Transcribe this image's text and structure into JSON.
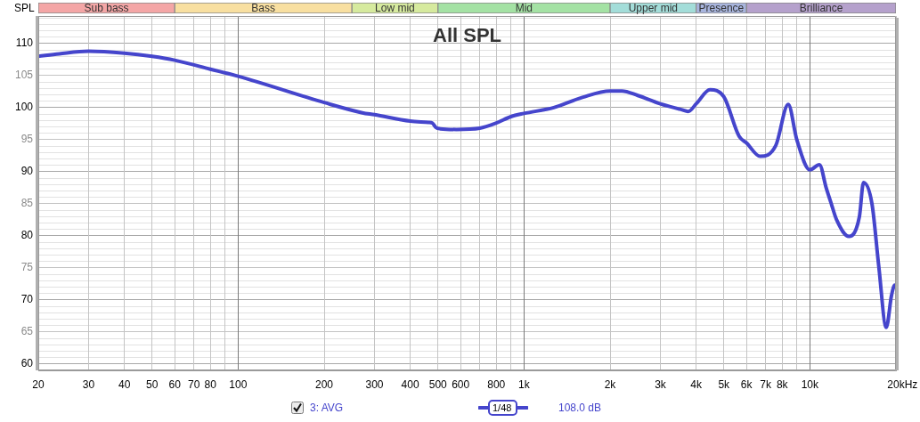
{
  "chart_data": [
    {
      "type": "bar",
      "orientation": "horizontal",
      "stacked": true,
      "categories": [
        null
      ],
      "series": [
        {
          "name": "Sub bass",
          "color": "#f4a6a6",
          "values": [
            60
          ]
        },
        {
          "name": "Bass",
          "color": "#f8dfa0",
          "values": [
            190
          ]
        },
        {
          "name": "Low mid",
          "color": "#d6ea9e",
          "values": [
            250
          ]
        },
        {
          "name": "Mid",
          "color": "#a4e2a4",
          "values": [
            1500
          ]
        },
        {
          "name": "Upper mid",
          "color": "#a3ddd9",
          "values": [
            2000
          ]
        },
        {
          "name": "Presence",
          "color": "#a8b5de",
          "values": [
            2000
          ]
        },
        {
          "name": "Brilliance",
          "color": "#b5a1cc",
          "values": [
            14000
          ]
        }
      ],
      "xlim": [
        20,
        20000
      ],
      "log": "x",
      "tick_labels": false
    },
    {
      "type": "line",
      "title": "All SPL",
      "ylabel": "SPL",
      "xlabel": "Hz",
      "x": [
        20,
        23.7,
        30,
        40,
        50,
        60,
        80,
        100,
        200,
        272,
        300,
        400,
        464,
        478,
        492,
        510,
        580,
        700,
        800,
        900,
        1000,
        1270,
        1600,
        2000,
        2200,
        2500,
        3000,
        3550,
        3750,
        4020,
        4470,
        5000,
        5660,
        6000,
        6700,
        7600,
        8400,
        9000,
        10000,
        10800,
        11400,
        11900,
        12400,
        13700,
        14900,
        15400,
        16500,
        17400,
        18500,
        19300,
        19800,
        20000
      ],
      "series": [
        {
          "name": "3: AVG",
          "color": "#4545cc",
          "values": [
            108.0,
            108.4,
            108.8,
            108.5,
            108.0,
            107.4,
            106.0,
            104.9,
            100.8,
            99.2,
            98.9,
            97.9,
            97.7,
            97.6,
            96.9,
            96.7,
            96.6,
            96.8,
            97.6,
            98.6,
            99.1,
            100.0,
            101.6,
            102.6,
            102.6,
            101.9,
            100.6,
            99.7,
            99.4,
            100.7,
            102.8,
            101.7,
            95.5,
            94.5,
            92.4,
            94.1,
            100.5,
            95.0,
            90.3,
            91.1,
            87.5,
            84.9,
            82.5,
            79.9,
            83.0,
            88.3,
            84.9,
            75.4,
            65.7,
            70.7,
            72.3,
            72.0
          ]
        }
      ],
      "xlim": [
        20,
        20000
      ],
      "ylim": [
        59,
        114.3
      ],
      "xticks": [
        20,
        30,
        40,
        50,
        60,
        70,
        80,
        {
          "value": 90,
          "label": null
        },
        100,
        200,
        300,
        400,
        500,
        600,
        {
          "value": 700,
          "label": null
        },
        800,
        {
          "value": 900,
          "label": null
        },
        {
          "value": 1000,
          "label": "1k"
        },
        {
          "value": 2000,
          "label": "2k"
        },
        {
          "value": 3000,
          "label": "3k"
        },
        {
          "value": 4000,
          "label": "4k"
        },
        {
          "value": 5000,
          "label": "5k"
        },
        {
          "value": 6000,
          "label": "6k"
        },
        {
          "value": 7000,
          "label": "7k"
        },
        {
          "value": 8000,
          "label": "8k"
        },
        {
          "value": 9000,
          "label": null
        },
        {
          "value": 10000,
          "label": "10k"
        },
        {
          "value": 20000,
          "label": "20k"
        }
      ],
      "yticks": [
        60,
        {
          "value": 61,
          "label": null
        },
        {
          "value": 62,
          "label": null
        },
        {
          "value": 63,
          "label": null
        },
        {
          "value": 64,
          "label": null
        },
        65,
        {
          "value": 66,
          "label": null
        },
        {
          "value": 67,
          "label": null
        },
        {
          "value": 68,
          "label": null
        },
        {
          "value": 69,
          "label": null
        },
        70,
        {
          "value": 71,
          "label": null
        },
        {
          "value": 72,
          "label": null
        },
        {
          "value": 73,
          "label": null
        },
        {
          "value": 74,
          "label": null
        },
        75,
        {
          "value": 76,
          "label": null
        },
        {
          "value": 77,
          "label": null
        },
        {
          "value": 78,
          "label": null
        },
        {
          "value": 79,
          "label": null
        },
        80,
        {
          "value": 81,
          "label": null
        },
        {
          "value": 82,
          "label": null
        },
        {
          "value": 83,
          "label": null
        },
        {
          "value": 84,
          "label": null
        },
        85,
        {
          "value": 86,
          "label": null
        },
        {
          "value": 87,
          "label": null
        },
        {
          "value": 88,
          "label": null
        },
        {
          "value": 89,
          "label": null
        },
        90,
        {
          "value": 91,
          "label": null
        },
        {
          "value": 92,
          "label": null
        },
        {
          "value": 93,
          "label": null
        },
        {
          "value": 94,
          "label": null
        },
        95,
        {
          "value": 96,
          "label": null
        },
        {
          "value": 97,
          "label": null
        },
        {
          "value": 98,
          "label": null
        },
        {
          "value": 99,
          "label": null
        },
        100,
        {
          "value": 101,
          "label": null
        },
        {
          "value": 102,
          "label": null
        },
        {
          "value": 103,
          "label": null
        },
        {
          "value": 104,
          "label": null
        },
        105,
        {
          "value": 106,
          "label": null
        },
        {
          "value": 107,
          "label": null
        },
        {
          "value": 108,
          "label": null
        },
        {
          "value": 109,
          "label": null
        },
        110,
        {
          "value": 111,
          "label": null
        },
        {
          "value": 112,
          "label": null
        },
        {
          "value": 113,
          "label": null
        },
        {
          "value": 114,
          "label": null
        }
      ],
      "log": "x",
      "grid": true,
      "legend": "bottom",
      "marker": "none",
      "line_style": "solid",
      "annotations": [
        "1/48",
        "108.0 dB"
      ]
    }
  ]
}
